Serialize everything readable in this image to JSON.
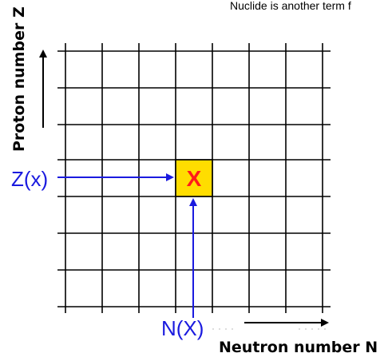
{
  "caption": "Nuclide is another term f",
  "y_axis_label": "Proton number Z",
  "x_axis_label": "Neutron number N",
  "z_marker_label": "Z(x)",
  "n_marker_label": "N(X)",
  "cell_label": "X",
  "colors": {
    "grid": "#000000",
    "marker_blue": "#1a1adf",
    "cell_fill": "#ffdd00",
    "cell_text": "#ff1a1a"
  }
}
